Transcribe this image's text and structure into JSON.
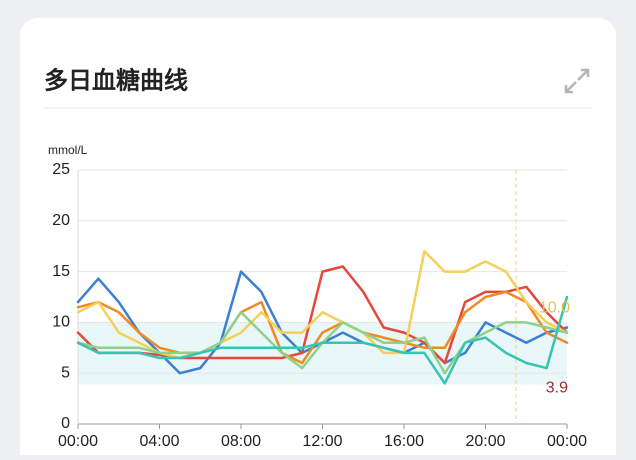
{
  "chart_data": {
    "type": "line",
    "title": "多日血糖曲线",
    "y_label": "mmol/L",
    "x": [
      0,
      1,
      2,
      3,
      4,
      5,
      6,
      7,
      8,
      9,
      10,
      11,
      12,
      13,
      14,
      15,
      16,
      17,
      18,
      19,
      20,
      21,
      22,
      23,
      24
    ],
    "xlim": [
      0,
      24
    ],
    "xticks": [
      {
        "value": 0,
        "label": "00:00"
      },
      {
        "value": 4,
        "label": "04:00"
      },
      {
        "value": 8,
        "label": "08:00"
      },
      {
        "value": 12,
        "label": "12:00"
      },
      {
        "value": 16,
        "label": "16:00"
      },
      {
        "value": 20,
        "label": "20:00"
      },
      {
        "value": 24,
        "label": "00:00"
      }
    ],
    "ylim": [
      0,
      25
    ],
    "yticks": [
      0,
      5,
      10,
      15,
      20,
      25
    ],
    "grid": true,
    "target_low": 3.9,
    "target_high": {
      "value": 10,
      "label": "10.0"
    },
    "cursor_x": 21.5,
    "series": [
      {
        "color": "#3b7fd4",
        "values": [
          12,
          14.3,
          12,
          9,
          7,
          5,
          5.5,
          8,
          15,
          13,
          9,
          7,
          8,
          9,
          8,
          7.5,
          7,
          8,
          6,
          7,
          10,
          9,
          8,
          9,
          9.5
        ]
      },
      {
        "color": "#e5483b",
        "values": [
          9,
          7,
          7,
          7,
          6.8,
          6.5,
          6.5,
          6.5,
          6.5,
          6.5,
          6.5,
          7,
          15,
          15.5,
          13,
          9.5,
          9,
          8,
          6,
          12,
          13,
          13,
          13.5,
          11,
          9
        ]
      },
      {
        "color": "#f08a24",
        "values": [
          11.5,
          12,
          11,
          9,
          7.5,
          7,
          7,
          8,
          11,
          12,
          7,
          6,
          9,
          10,
          9,
          8.5,
          8,
          7.5,
          7.5,
          11,
          12.5,
          13,
          12,
          9,
          8
        ]
      },
      {
        "color": "#f5cf5a",
        "values": [
          11,
          12,
          9,
          8,
          7,
          6.5,
          7,
          8,
          9,
          11,
          9,
          9,
          11,
          10,
          9,
          7,
          7,
          17,
          15,
          15,
          16,
          15,
          12,
          10,
          9
        ]
      },
      {
        "color": "#8fd18a",
        "values": [
          8,
          7.5,
          7.5,
          7.5,
          7,
          7,
          7,
          8,
          11,
          9,
          7,
          5.5,
          8,
          10,
          9,
          8,
          8,
          8.5,
          5,
          8,
          9,
          10,
          10,
          9.5,
          9
        ]
      },
      {
        "color": "#38c4b2",
        "values": [
          8,
          7,
          7,
          7,
          6.5,
          6.5,
          7,
          7.5,
          7.5,
          7.5,
          7.5,
          7.5,
          8,
          8,
          8,
          7.5,
          7,
          7,
          4,
          8,
          8.5,
          7,
          6,
          5.5,
          12.5
        ]
      }
    ]
  }
}
